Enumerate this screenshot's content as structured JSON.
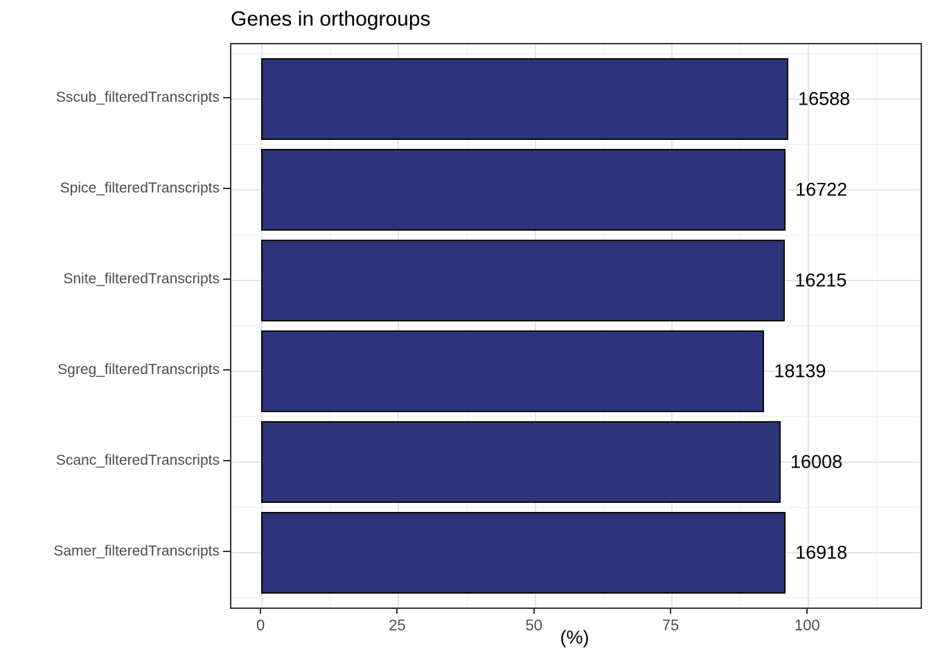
{
  "title": "Genes in orthogroups",
  "chart_data": {
    "type": "bar",
    "orientation": "horizontal",
    "title": "Genes in orthogroups",
    "xlabel": "(%)",
    "ylabel": "",
    "categories": [
      "Sscub_filteredTranscripts",
      "Spice_filteredTranscripts",
      "Snite_filteredTranscripts",
      "Sgreg_filteredTranscripts",
      "Scanc_filteredTranscripts",
      "Samer_filteredTranscripts"
    ],
    "values": [
      96.3,
      95.8,
      95.7,
      91.9,
      94.9,
      95.8
    ],
    "bar_labels": [
      "16588",
      "16722",
      "16215",
      "18139",
      "16008",
      "16918"
    ],
    "x_major_ticks": [
      0,
      25,
      50,
      75,
      100
    ],
    "x_minor_ticks": [
      12.5,
      37.5,
      62.5,
      87.5,
      112.5
    ],
    "xlim": [
      -5.6,
      120.5
    ],
    "legend_position": "none",
    "grid": "on",
    "colors": {
      "bar_fill": "#2c3479",
      "bar_stroke": "#0a0a0a",
      "grid_major": "#e4e4e4",
      "grid_minor": "#f0f0f0",
      "axis_text": "#4d4d4d",
      "panel_border": "#333333",
      "background": "#ffffff"
    }
  }
}
